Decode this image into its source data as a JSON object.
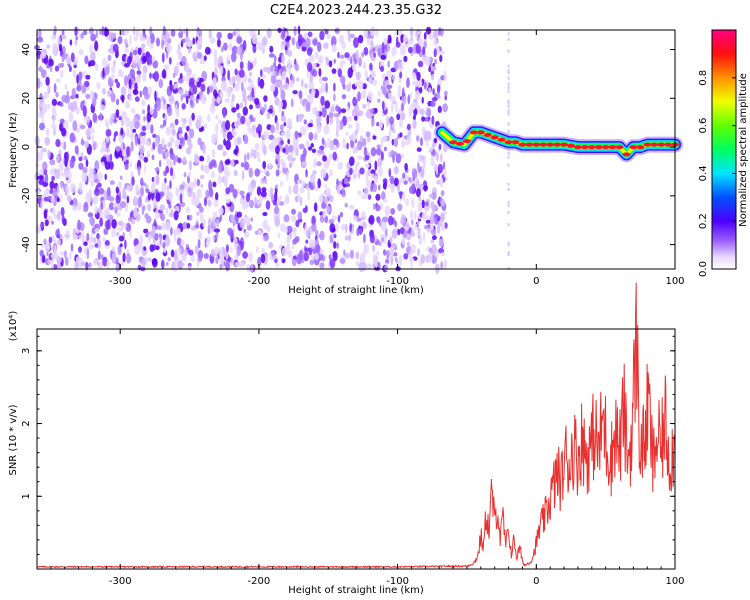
{
  "title": "C2E4.2023.244.23.35.G32",
  "spectrogram": {
    "type": "heatmap",
    "xlabel": "Height of straight line (km)",
    "ylabel": "Frequency (Hz)",
    "xlim": [
      -360,
      100
    ],
    "ylim": [
      -50,
      48
    ],
    "xticks": [
      -300,
      -200,
      -100,
      0,
      100
    ],
    "yticks": [
      -40,
      -20,
      0,
      20,
      40
    ],
    "noise_region_x": [
      -360,
      -65
    ],
    "signal_ridge": {
      "x": [
        -68,
        -60,
        -52,
        -45,
        -40,
        -35,
        -30,
        -25,
        -20,
        -15,
        -10,
        -5,
        0,
        10,
        20,
        30,
        40,
        50,
        55,
        60,
        65,
        70,
        75,
        80,
        85,
        90,
        95,
        100
      ],
      "y": [
        6,
        2,
        1,
        6,
        6,
        5,
        4,
        3,
        2,
        2,
        1,
        1,
        1,
        1,
        1,
        0,
        0,
        0,
        0,
        0,
        -3,
        0,
        0,
        1,
        1,
        1,
        1,
        1
      ]
    },
    "colorbar": {
      "label": "Normalized spectral amplitude",
      "range": [
        0,
        1
      ],
      "ticks": [
        "0.0",
        "0.2",
        "0.4",
        "0.6",
        "0.8"
      ],
      "tick_values": [
        0,
        0.2,
        0.4,
        0.6,
        0.8
      ]
    }
  },
  "chart_data": {
    "type": "line",
    "xlabel": "Height of straight line (km)",
    "ylabel": "SNR (10 * v/v)",
    "yscale_label": "(x10⁴)",
    "xlim": [
      -360,
      100
    ],
    "ylim": [
      0,
      3.3
    ],
    "xticks": [
      -300,
      -200,
      -100,
      0,
      100
    ],
    "yticks": [
      1,
      2,
      3
    ],
    "series": [
      {
        "color": "#e8302e",
        "x": [
          -360,
          -300,
          -200,
          -100,
          -50,
          -45,
          -42,
          -40,
          -38,
          -36,
          -34,
          -32,
          -30,
          -28,
          -26,
          -24,
          -22,
          -20,
          -18,
          -16,
          -14,
          -12,
          -10,
          -8,
          -6,
          -4,
          -2,
          0,
          3,
          6,
          9,
          12,
          15,
          18,
          21,
          24,
          27,
          30,
          33,
          36,
          39,
          42,
          45,
          48,
          51,
          54,
          57,
          60,
          63,
          66,
          69,
          72,
          75,
          78,
          81,
          84,
          87,
          90,
          93,
          96,
          100
        ],
        "y": [
          0.03,
          0.03,
          0.03,
          0.03,
          0.04,
          0.08,
          0.2,
          0.45,
          0.3,
          0.8,
          0.5,
          1.1,
          0.6,
          0.9,
          0.4,
          0.7,
          0.3,
          0.55,
          0.2,
          0.4,
          0.15,
          0.3,
          0.1,
          0.05,
          0.08,
          0.1,
          0.2,
          0.35,
          0.6,
          0.7,
          0.9,
          1.1,
          1.3,
          1.2,
          1.55,
          1.45,
          1.7,
          1.5,
          1.8,
          1.55,
          1.65,
          1.9,
          1.6,
          2.1,
          1.7,
          1.5,
          1.95,
          1.6,
          2.2,
          1.5,
          1.85,
          3.2,
          1.6,
          1.75,
          2.3,
          1.4,
          1.8,
          1.65,
          2.05,
          1.5,
          1.7
        ]
      }
    ]
  }
}
